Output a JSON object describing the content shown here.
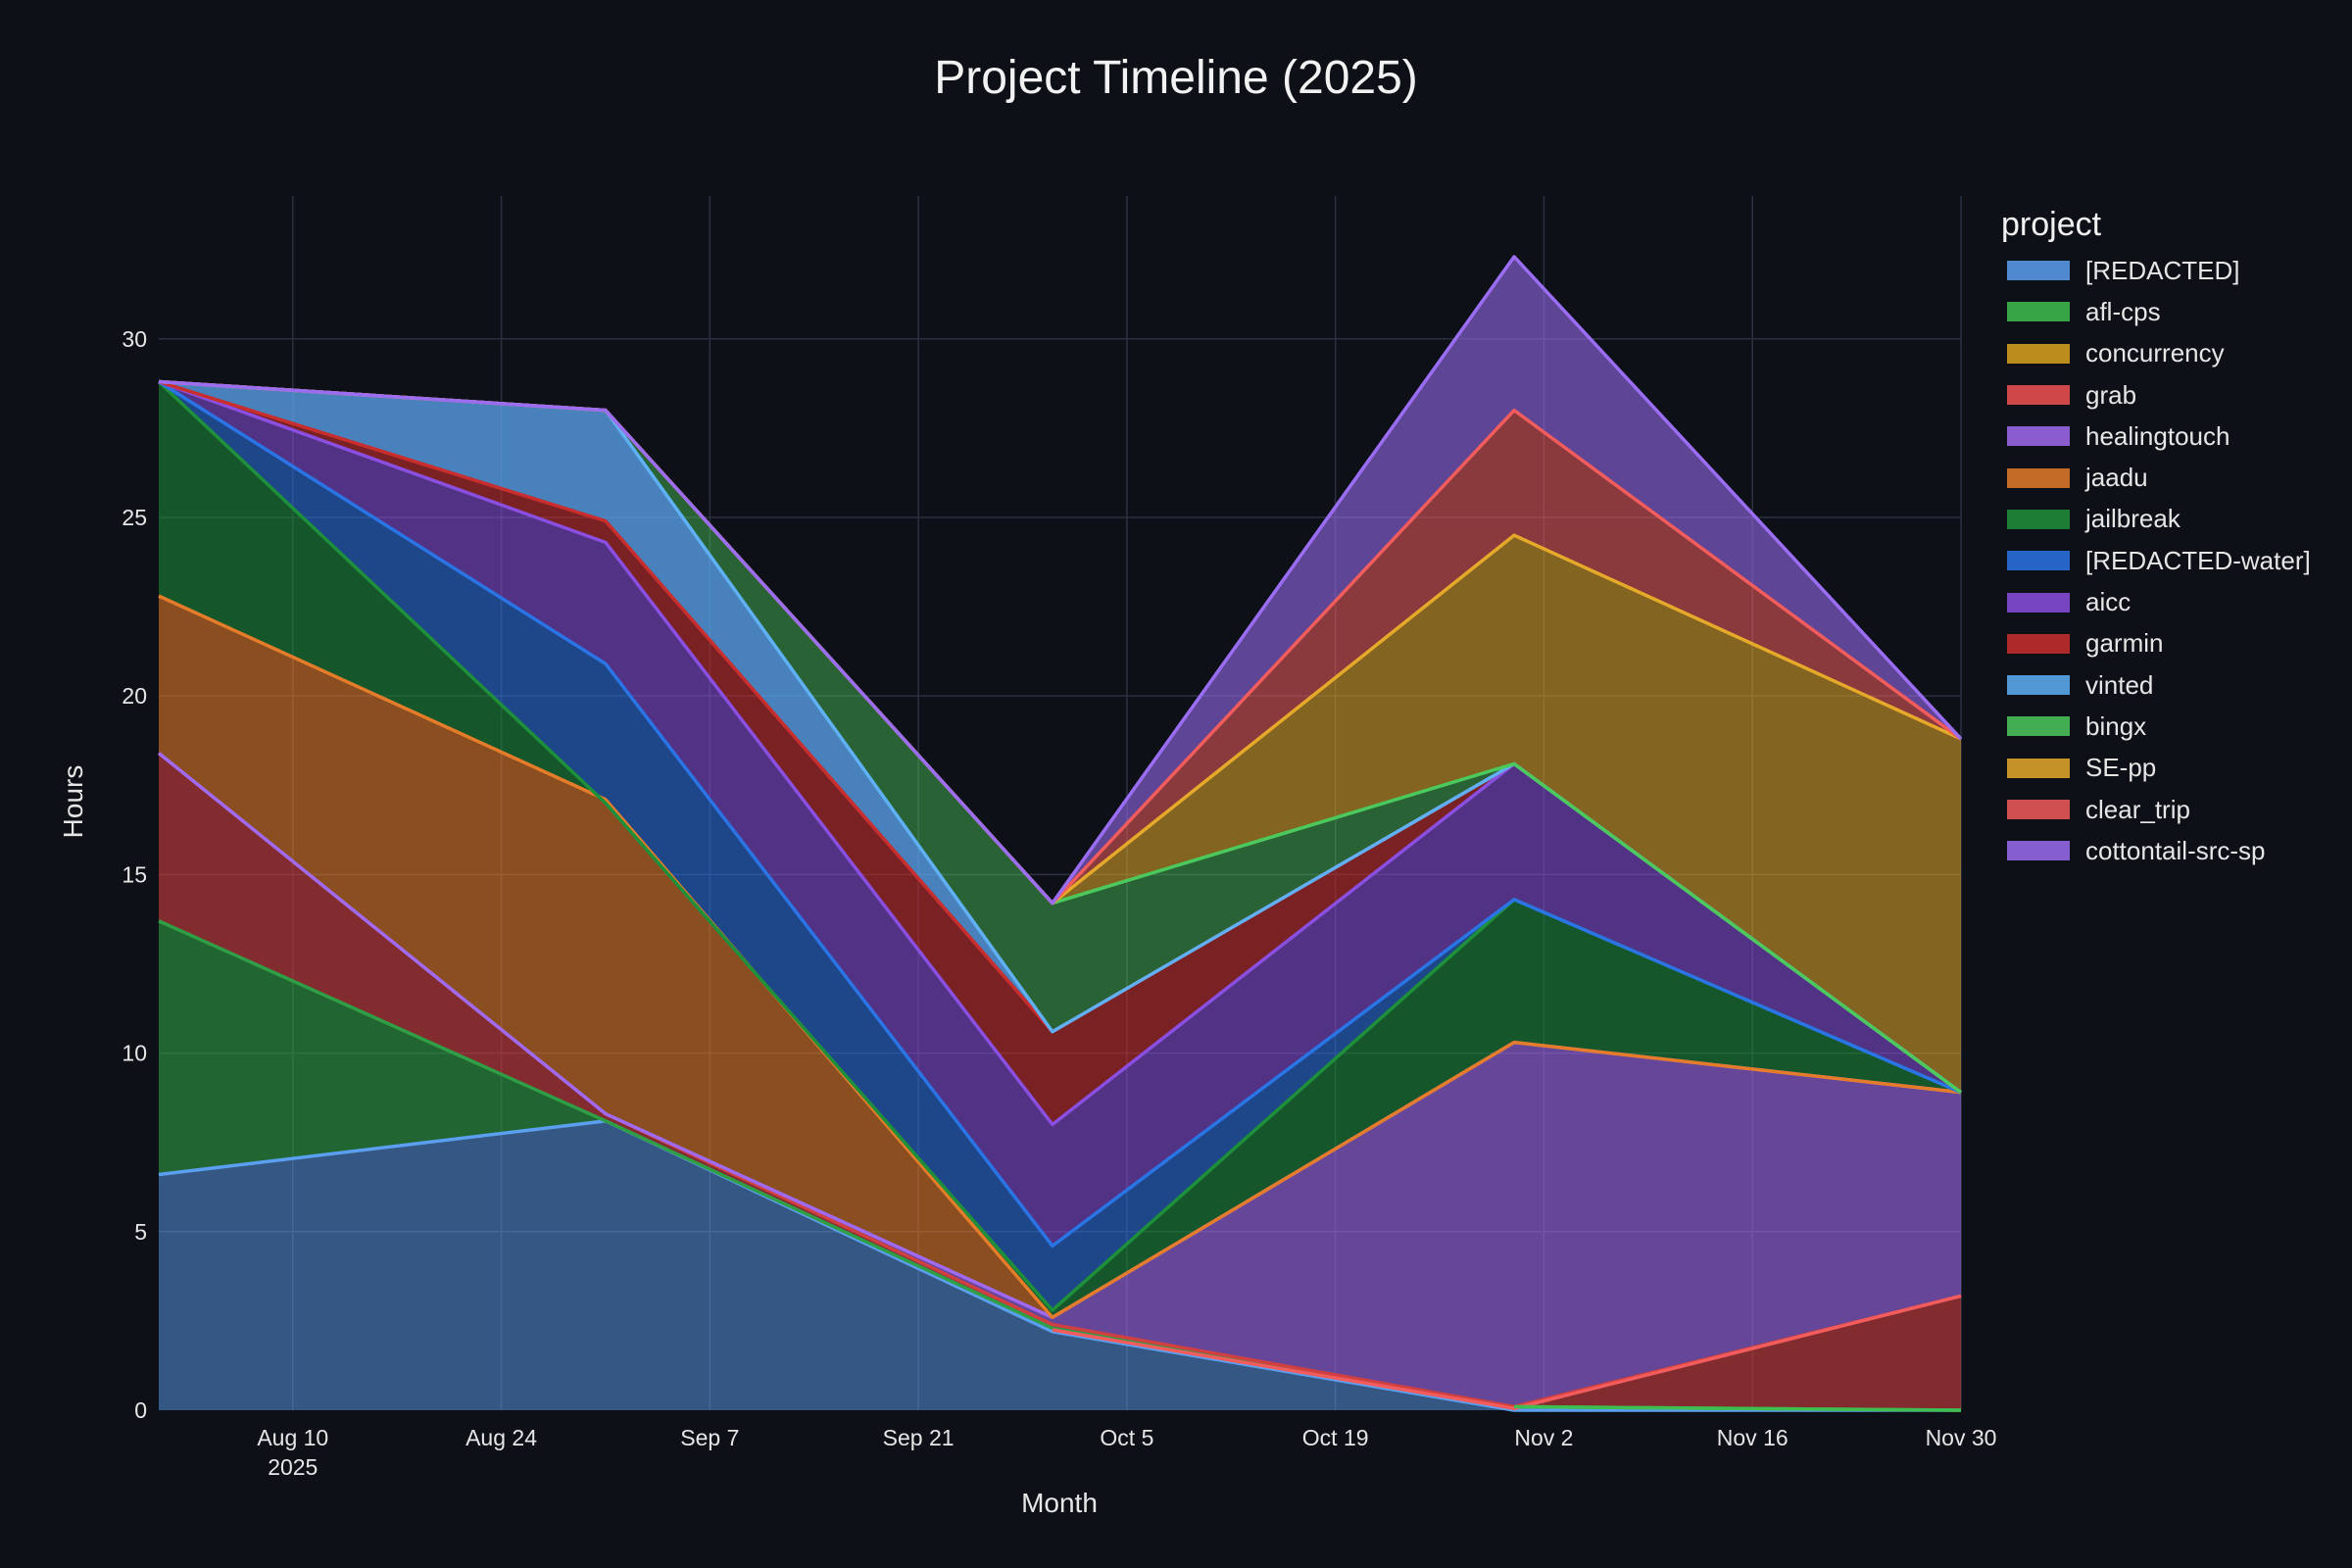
{
  "chart_data": {
    "type": "area",
    "title": "Project Timeline (2025)",
    "xlabel": "Month",
    "ylabel": "Hours",
    "legend_title": "project",
    "legend_position": "right",
    "stacked": true,
    "grid": true,
    "x": [
      "2025-08-01",
      "2025-08-31",
      "2025-09-30",
      "2025-10-31",
      "2025-11-30"
    ],
    "x_range": [
      "2025-08-01",
      "2025-11-30"
    ],
    "x_ticks": [
      {
        "date": "2025-08-10",
        "label": "Aug 10",
        "sublabel": "2025"
      },
      {
        "date": "2025-08-24",
        "label": "Aug 24",
        "sublabel": ""
      },
      {
        "date": "2025-09-07",
        "label": "Sep 7",
        "sublabel": ""
      },
      {
        "date": "2025-09-21",
        "label": "Sep 21",
        "sublabel": ""
      },
      {
        "date": "2025-10-05",
        "label": "Oct 5",
        "sublabel": ""
      },
      {
        "date": "2025-10-19",
        "label": "Oct 19",
        "sublabel": ""
      },
      {
        "date": "2025-11-02",
        "label": "Nov 2",
        "sublabel": ""
      },
      {
        "date": "2025-11-16",
        "label": "Nov 16",
        "sublabel": ""
      },
      {
        "date": "2025-11-30",
        "label": "Nov 30",
        "sublabel": ""
      }
    ],
    "ylim": [
      0,
      34
    ],
    "y_ticks": [
      0,
      5,
      10,
      15,
      20,
      25,
      30
    ],
    "series": [
      {
        "name": "[REDACTED]",
        "color": "#5b9ff0",
        "values": [
          6.6,
          8.1,
          2.2,
          0,
          0
        ]
      },
      {
        "name": "afl-cps",
        "color": "#3fbf4f",
        "values": [
          0,
          0,
          0,
          0.1,
          0
        ]
      },
      {
        "name": "concurrency",
        "color": "#d9a31f",
        "values": [
          0,
          0,
          0,
          0,
          3.2
        ]
      },
      {
        "name": "grab",
        "color": "#f05252",
        "values": [
          0,
          0,
          0.05,
          0,
          0
        ]
      },
      {
        "name": "healingtouch",
        "color": "#a06af0",
        "values": [
          0,
          0,
          0.25,
          10.2,
          5.7
        ]
      },
      {
        "name": "jaadu",
        "color": "#e57c2a",
        "values": [
          0,
          0,
          0.1,
          0,
          0
        ]
      },
      {
        "name": "jailbreak",
        "color": "#1e8f3a",
        "values": [
          7.1,
          0,
          0.05,
          4.0,
          0
        ]
      },
      {
        "name": "[REDACTED-water]",
        "color": "#2b74e6",
        "values": [
          0,
          0,
          1.9,
          0,
          0
        ]
      },
      {
        "name": "aicc",
        "color": "#8a4fe0",
        "values": [
          0,
          0,
          3.4,
          3.8,
          0
        ]
      },
      {
        "name": "garmin",
        "color": "#c92e2e",
        "values": [
          4.7,
          0,
          2.6,
          0,
          0
        ]
      },
      {
        "name": "vinted",
        "color": "#5fb0f5",
        "values": [
          0,
          0,
          0,
          0,
          0
        ]
      },
      {
        "name": "bingx",
        "color": "#4cc95c",
        "values": [
          0,
          0,
          3.6,
          0,
          0
        ]
      },
      {
        "name": "SE-pp",
        "color": "#e6a92a",
        "values": [
          0,
          0,
          0,
          6.4,
          9.9
        ]
      },
      {
        "name": "clear_trip",
        "color": "#f25c5c",
        "values": [
          0,
          0,
          0,
          3.5,
          0
        ]
      },
      {
        "name": "cottontail-src-sp",
        "color": "#9b6df2",
        "values": [
          0,
          0,
          0,
          4.3,
          0
        ]
      }
    ],
    "overlay_series": [
      {
        "name": "jaadu",
        "color": "#e57c2a",
        "alpha": 0.58,
        "values": [
          22.8,
          17.1,
          2.6,
          10.3,
          8.9
        ]
      },
      {
        "name": "jailbreak",
        "color": "#1e8f3a",
        "alpha": 0.55,
        "values": [
          28.8,
          17.0,
          2.8,
          14.3,
          8.9
        ]
      },
      {
        "name": "[REDACTED-water]",
        "color": "#2b74e6",
        "alpha": 0.55,
        "values": [
          28.8,
          20.9,
          4.6,
          14.3,
          8.9
        ]
      },
      {
        "name": "aicc",
        "color": "#8a4fe0",
        "alpha": 0.55,
        "values": [
          28.8,
          24.3,
          8.0,
          18.1,
          8.9
        ]
      },
      {
        "name": "garmin",
        "color": "#c92e2e",
        "alpha": 0.58,
        "values": [
          28.8,
          24.9,
          10.6,
          18.1,
          8.9
        ]
      },
      {
        "name": "vinted",
        "color": "#5fb0f5",
        "alpha": 0.55,
        "values": [
          28.8,
          28.0,
          10.6,
          18.1,
          8.9
        ]
      },
      {
        "name": "bingx",
        "color": "#4cc95c",
        "alpha": 0.45,
        "values": [
          28.8,
          28.0,
          14.2,
          18.1,
          8.9
        ]
      },
      {
        "name": "SE-pp",
        "color": "#e6a92a",
        "alpha": 0.55,
        "values": [
          28.8,
          28.0,
          14.2,
          24.5,
          18.8
        ]
      },
      {
        "name": "clear_trip",
        "color": "#f25c5c",
        "alpha": 0.55,
        "values": [
          28.8,
          28.0,
          14.2,
          28.0,
          18.8
        ]
      },
      {
        "name": "cottontail-src-sp",
        "color": "#9b6df2",
        "alpha": 0.58,
        "values": [
          28.8,
          28.0,
          14.2,
          32.3,
          18.8
        ]
      }
    ],
    "top_outline": {
      "values": [
        28.8,
        28.0,
        14.2,
        32.3,
        18.8
      ]
    },
    "base_layers": [
      {
        "name": "[REDACTED]",
        "color": "#5b9ff0",
        "alpha": 0.5,
        "values": [
          6.6,
          8.1,
          2.2,
          0,
          0
        ]
      },
      {
        "name": "jailbreak",
        "color": "#2f9e45",
        "alpha": 0.6,
        "values": [
          13.7,
          8.1,
          2.3,
          0.1,
          0
        ]
      },
      {
        "name": "garmin",
        "color": "#d04040",
        "alpha": 0.6,
        "values": [
          18.4,
          8.3,
          2.4,
          0.1,
          3.2
        ]
      },
      {
        "name": "healingtouch",
        "color": "#a06af0",
        "alpha": 0.6,
        "values": [
          18.4,
          8.3,
          2.6,
          10.3,
          8.9
        ]
      }
    ]
  }
}
